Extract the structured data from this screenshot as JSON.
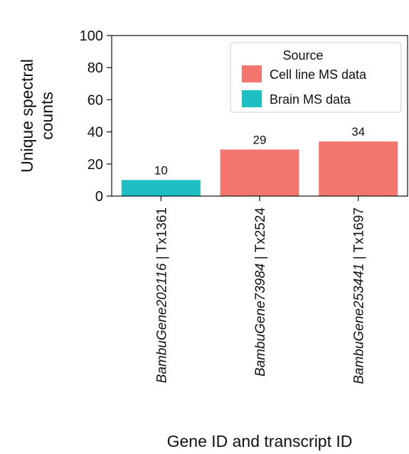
{
  "chart_data": {
    "type": "bar",
    "ylabel_line1": "Unique spectral",
    "ylabel_line2": "counts",
    "xlabel": "Gene ID and transcript ID",
    "ylim": [
      0,
      100
    ],
    "yticks": [
      0,
      20,
      40,
      60,
      80,
      100
    ],
    "grid": false,
    "legend": {
      "title": "Source",
      "placement": "top-right",
      "entries": [
        {
          "label": "Cell line MS data",
          "color": "#F2766E"
        },
        {
          "label": "Brain MS data",
          "color": "#1DBFC3"
        }
      ]
    },
    "categories": [
      {
        "gene": "BambuGene202116",
        "transcript": " | Tx1361"
      },
      {
        "gene": "BambuGene73984",
        "transcript": " | Tx2524"
      },
      {
        "gene": "BambuGene253441",
        "transcript": " | Tx1697"
      }
    ],
    "values": [
      10,
      29,
      34
    ],
    "value_labels": [
      "10",
      "29",
      "34"
    ],
    "sources": [
      "Brain MS data",
      "Cell line MS data",
      "Cell line MS data"
    ],
    "colors": {
      "Cell line MS data": "#F2766E",
      "Brain MS data": "#1DBFC3",
      "axis": "#111111"
    }
  }
}
